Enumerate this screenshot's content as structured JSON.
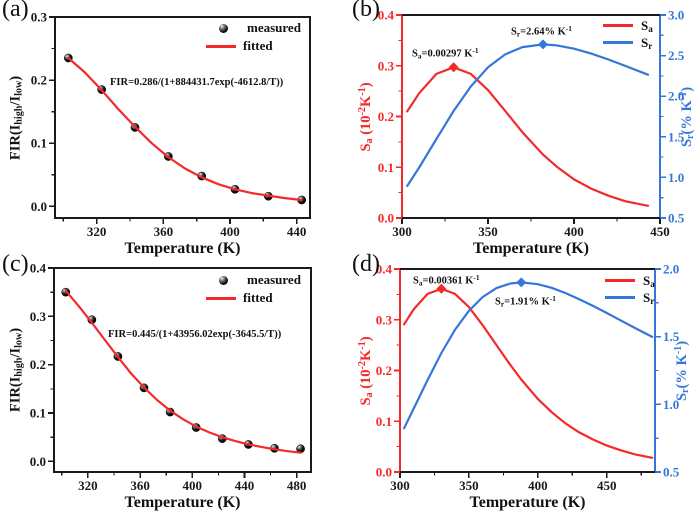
{
  "colors": {
    "red": "#f42a2a",
    "blue": "#3577d9",
    "black": "#1a1a1a"
  },
  "panels": {
    "a": {
      "label": "(a)",
      "xlabel": "Temperature (K)",
      "ylabel_rich": [
        {
          "t": "FIR(I"
        },
        {
          "t": "high",
          "v": "sub"
        },
        {
          "t": "/I"
        },
        {
          "t": "low",
          "v": "sub"
        },
        {
          "t": ")"
        }
      ],
      "equation": "FIR=0.286/(1+884431.7exp(-4612.8/T))",
      "legend": [
        {
          "swatch": "sphere",
          "color": "black",
          "label_rich": [
            {
              "t": "measured"
            }
          ]
        },
        {
          "swatch": "line",
          "color": "red",
          "label_rich": [
            {
              "t": "fitted"
            }
          ]
        }
      ]
    },
    "b": {
      "label": "(b)",
      "xlabel": "Temperature (K)",
      "ylabel_rich": [
        {
          "t": "S"
        },
        {
          "t": "a",
          "v": "sub"
        },
        {
          "t": " (10"
        },
        {
          "t": "-2",
          "v": "sup"
        },
        {
          "t": "K"
        },
        {
          "t": "-1",
          "v": "sup"
        },
        {
          "t": ")"
        }
      ],
      "y2label_rich": [
        {
          "t": "S"
        },
        {
          "t": "r",
          "v": "sub"
        },
        {
          "t": "(% K"
        },
        {
          "t": "-1",
          "v": "sup"
        },
        {
          "t": ")"
        }
      ],
      "sa_annotation_rich": [
        {
          "t": "S"
        },
        {
          "t": "a",
          "v": "sub"
        },
        {
          "t": "=0.00297 K"
        },
        {
          "t": "-1",
          "v": "sup"
        }
      ],
      "sr_annotation_rich": [
        {
          "t": "S"
        },
        {
          "t": "r",
          "v": "sub"
        },
        {
          "t": "=2.64% K"
        },
        {
          "t": "-1",
          "v": "sup"
        }
      ],
      "legend": [
        {
          "swatch": "line",
          "color": "red",
          "label_rich": [
            {
              "t": "S"
            },
            {
              "t": "a",
              "v": "sub"
            }
          ]
        },
        {
          "swatch": "line",
          "color": "blue",
          "label_rich": [
            {
              "t": "S"
            },
            {
              "t": "r",
              "v": "sub"
            }
          ]
        }
      ]
    },
    "c": {
      "label": "(c)",
      "xlabel": "Temperature (K)",
      "ylabel_rich": [
        {
          "t": "FIR(I"
        },
        {
          "t": "high",
          "v": "sub"
        },
        {
          "t": "/I"
        },
        {
          "t": "low",
          "v": "sub"
        },
        {
          "t": ")"
        }
      ],
      "equation": "FIR=0.445/(1+43956.02exp(-3645.5/T))",
      "legend": [
        {
          "swatch": "sphere",
          "color": "black",
          "label_rich": [
            {
              "t": "measured"
            }
          ]
        },
        {
          "swatch": "line",
          "color": "red",
          "label_rich": [
            {
              "t": "fitted"
            }
          ]
        }
      ]
    },
    "d": {
      "label": "(d)",
      "xlabel": "Temperature (K)",
      "ylabel_rich": [
        {
          "t": "S"
        },
        {
          "t": "a",
          "v": "sub"
        },
        {
          "t": " (10"
        },
        {
          "t": "-2",
          "v": "sup"
        },
        {
          "t": "K"
        },
        {
          "t": "-1",
          "v": "sup"
        },
        {
          "t": ")"
        }
      ],
      "y2label_rich": [
        {
          "t": "S"
        },
        {
          "t": "r",
          "v": "sub"
        },
        {
          "t": "(% K"
        },
        {
          "t": "-1",
          "v": "sup"
        },
        {
          "t": ")"
        }
      ],
      "sa_annotation_rich": [
        {
          "t": "S"
        },
        {
          "t": "a",
          "v": "sub"
        },
        {
          "t": "=0.00361 K"
        },
        {
          "t": "-1",
          "v": "sup"
        }
      ],
      "sr_annotation_rich": [
        {
          "t": "S"
        },
        {
          "t": "r",
          "v": "sub"
        },
        {
          "t": "=1.91% K"
        },
        {
          "t": "-1",
          "v": "sup"
        }
      ],
      "legend": [
        {
          "swatch": "line",
          "color": "red",
          "label_rich": [
            {
              "t": "S"
            },
            {
              "t": "a",
              "v": "sub"
            }
          ]
        },
        {
          "swatch": "line",
          "color": "blue",
          "label_rich": [
            {
              "t": "S"
            },
            {
              "t": "r",
              "v": "sub"
            }
          ]
        }
      ]
    }
  },
  "chart_data": [
    {
      "panel": "a",
      "type": "scatter",
      "title": "",
      "xlabel": "Temperature (K)",
      "ylabel": "FIR(I_high/I_low)",
      "annotation": "FIR=0.286/(1+884431.7exp(-4612.8/T))",
      "xlim": [
        295,
        448
      ],
      "ylim": [
        -0.0185,
        0.3
      ],
      "xticks": [
        320,
        360,
        400,
        440
      ],
      "yticks": {
        "values": [
          0,
          0.1,
          0.2,
          0.3
        ],
        "labels": [
          "0.0",
          "0.1",
          "0.2",
          "0.3"
        ]
      },
      "axis_colors": {
        "left": "black",
        "right": "black",
        "top": "black",
        "bottom": "black"
      },
      "series": [
        {
          "name": "measured",
          "kind": "scatter",
          "color": "black",
          "axis": "left",
          "x": [
            303,
            323,
            343,
            363,
            383,
            403,
            423,
            443
          ],
          "y": [
            0.235,
            0.185,
            0.125,
            0.079,
            0.048,
            0.027,
            0.016,
            0.01
          ]
        },
        {
          "name": "fitted",
          "kind": "line",
          "color": "red",
          "axis": "left",
          "x": [
            303,
            313,
            323,
            333,
            343,
            353,
            363,
            373,
            383,
            393,
            403,
            413,
            423,
            433,
            443
          ],
          "y": [
            0.235,
            0.212,
            0.184,
            0.154,
            0.126,
            0.1,
            0.078,
            0.06,
            0.046,
            0.035,
            0.027,
            0.021,
            0.017,
            0.013,
            0.01
          ]
        }
      ]
    },
    {
      "panel": "b",
      "type": "line",
      "title": "",
      "xlabel": "Temperature (K)",
      "ylabel": "Sa (10^-2 K^-1)",
      "y2label": "Sr (% K^-1)",
      "annotations": [
        "Sa=0.00297 K^-1",
        "Sr=2.64% K^-1"
      ],
      "xlim": [
        300,
        450
      ],
      "ylim": [
        0,
        0.4
      ],
      "y2lim": [
        0.5,
        3.0
      ],
      "xticks": [
        300,
        350,
        400,
        450
      ],
      "yticks": {
        "values": [
          0,
          0.1,
          0.2,
          0.3,
          0.4
        ],
        "labels": [
          "0.0",
          "0.1",
          "0.2",
          "0.3",
          "0.4"
        ]
      },
      "y2ticks": {
        "values": [
          0.5,
          1.0,
          1.5,
          2.0,
          2.5,
          3.0
        ],
        "labels": [
          "0.5",
          "1.0",
          "1.5",
          "2.0",
          "2.5",
          "3.0"
        ]
      },
      "axis_colors": {
        "left": "red",
        "right": "blue",
        "top": "black",
        "bottom": "black"
      },
      "series": [
        {
          "name": "Sa",
          "kind": "line",
          "color": "red",
          "axis": "left",
          "x": [
            303,
            310,
            320,
            330,
            340,
            350,
            360,
            370,
            382,
            390,
            400,
            410,
            420,
            430,
            443
          ],
          "y": [
            0.21,
            0.246,
            0.284,
            0.297,
            0.284,
            0.252,
            0.211,
            0.169,
            0.125,
            0.101,
            0.076,
            0.058,
            0.044,
            0.033,
            0.024
          ],
          "peak": {
            "x": 330,
            "y": 0.297,
            "shape": "diamond"
          }
        },
        {
          "name": "Sr",
          "kind": "line",
          "color": "blue",
          "axis": "right",
          "x": [
            303,
            310,
            320,
            330,
            340,
            350,
            360,
            370,
            382,
            390,
            400,
            410,
            420,
            430,
            443
          ],
          "y": [
            0.894,
            1.122,
            1.473,
            1.818,
            2.12,
            2.356,
            2.515,
            2.605,
            2.638,
            2.626,
            2.585,
            2.525,
            2.452,
            2.372,
            2.265
          ],
          "peak": {
            "x": 382,
            "y": 2.638,
            "shape": "diamond"
          }
        }
      ]
    },
    {
      "panel": "c",
      "type": "scatter",
      "title": "",
      "xlabel": "Temperature (K)",
      "ylabel": "FIR(I_high/I_low)",
      "annotation": "FIR=0.445/(1+43956.02exp(-3645.5/T))",
      "xlim": [
        294,
        491
      ],
      "ylim": [
        -0.022,
        0.4
      ],
      "xticks": [
        320,
        360,
        400,
        440,
        480
      ],
      "yticks": {
        "values": [
          0,
          0.1,
          0.2,
          0.3,
          0.4
        ],
        "labels": [
          "0.0",
          "0.1",
          "0.2",
          "0.3",
          "0.4"
        ]
      },
      "axis_colors": {
        "left": "black",
        "right": "black",
        "top": "black",
        "bottom": "black"
      },
      "series": [
        {
          "name": "measured",
          "kind": "scatter",
          "color": "black",
          "axis": "left",
          "x": [
            303,
            323,
            343,
            363,
            383,
            403,
            423,
            443,
            463,
            483
          ],
          "y": [
            0.35,
            0.293,
            0.217,
            0.152,
            0.102,
            0.07,
            0.047,
            0.035,
            0.027,
            0.026
          ]
        },
        {
          "name": "fitted",
          "kind": "line",
          "color": "red",
          "axis": "left",
          "x": [
            303,
            313,
            323,
            333,
            343,
            353,
            363,
            373,
            383,
            393,
            403,
            413,
            423,
            433,
            443,
            453,
            463,
            473,
            483
          ],
          "y": [
            0.353,
            0.321,
            0.287,
            0.251,
            0.216,
            0.182,
            0.153,
            0.127,
            0.105,
            0.087,
            0.072,
            0.06,
            0.05,
            0.042,
            0.035,
            0.03,
            0.025,
            0.021,
            0.018
          ]
        }
      ]
    },
    {
      "panel": "d",
      "type": "line",
      "title": "",
      "xlabel": "Temperature (K)",
      "ylabel": "Sa (10^-2 K^-1)",
      "y2label": "Sr (% K^-1)",
      "annotations": [
        "Sa=0.00361 K^-1",
        "Sr=1.91% K^-1"
      ],
      "xlim": [
        300,
        485
      ],
      "ylim": [
        0,
        0.4
      ],
      "y2lim": [
        0.5,
        2.0
      ],
      "xticks": [
        300,
        350,
        400,
        450
      ],
      "yticks": {
        "values": [
          0,
          0.1,
          0.2,
          0.3,
          0.4
        ],
        "labels": [
          "0.0",
          "0.1",
          "0.2",
          "0.3",
          "0.4"
        ]
      },
      "y2ticks": {
        "values": [
          0.5,
          1.0,
          1.5,
          2.0
        ],
        "labels": [
          "0.5",
          "1.0",
          "1.5",
          "2.0"
        ]
      },
      "axis_colors": {
        "left": "red",
        "right": "blue",
        "top": "black",
        "bottom": "black"
      },
      "series": [
        {
          "name": "Sa",
          "kind": "line",
          "color": "red",
          "axis": "left",
          "x": [
            303,
            310,
            320,
            330,
            340,
            350,
            360,
            370,
            380,
            388,
            400,
            410,
            420,
            430,
            440,
            450,
            460,
            470,
            483
          ],
          "y": [
            0.291,
            0.321,
            0.351,
            0.361,
            0.351,
            0.325,
            0.289,
            0.25,
            0.211,
            0.182,
            0.144,
            0.118,
            0.096,
            0.078,
            0.064,
            0.052,
            0.043,
            0.035,
            0.028
          ],
          "peak": {
            "x": 330,
            "y": 0.361,
            "shape": "diamond"
          }
        },
        {
          "name": "Sr",
          "kind": "line",
          "color": "blue",
          "axis": "right",
          "x": [
            303,
            310,
            320,
            330,
            340,
            350,
            360,
            370,
            380,
            388,
            400,
            410,
            420,
            430,
            440,
            450,
            460,
            470,
            483
          ],
          "y": [
            0.824,
            0.97,
            1.18,
            1.379,
            1.552,
            1.691,
            1.793,
            1.859,
            1.893,
            1.901,
            1.888,
            1.861,
            1.823,
            1.777,
            1.727,
            1.675,
            1.621,
            1.567,
            1.498
          ],
          "peak": {
            "x": 388,
            "y": 1.901,
            "shape": "diamond"
          }
        }
      ]
    }
  ]
}
